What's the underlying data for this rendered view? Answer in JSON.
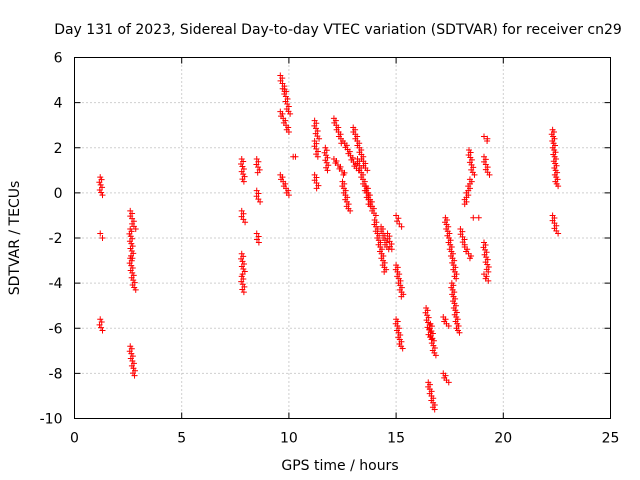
{
  "chart_data": {
    "type": "scatter",
    "title": "Day 131 of 2023, Sidereal Day-to-day VTEC variation (SDTVAR) for receiver cn29",
    "xlabel": "GPS time / hours",
    "ylabel": "SDTVAR / TECUs",
    "xlim": [
      0,
      25
    ],
    "ylim": [
      -10,
      6
    ],
    "xticks": [
      0,
      5,
      10,
      15,
      20,
      25
    ],
    "yticks": [
      -10,
      -8,
      -6,
      -4,
      -2,
      0,
      2,
      4,
      6
    ],
    "xtick_labels": [
      "0",
      "5",
      "10",
      "15",
      "20",
      "25"
    ],
    "ytick_labels": [
      "-10",
      "-8",
      "-6",
      "-4",
      "-2",
      "0",
      "2",
      "4",
      "6"
    ],
    "grid": true,
    "marker": "+",
    "color": "#ff0000",
    "series": [
      {
        "name": "cn29",
        "segments": [
          {
            "x": [
              1.2,
              1.25
            ],
            "y": [
              0.7,
              -0.1
            ]
          },
          {
            "x": [
              1.2,
              1.25
            ],
            "y": [
              -1.8,
              -2.0
            ]
          },
          {
            "x": [
              1.2,
              1.25
            ],
            "y": [
              -5.6,
              -6.1
            ]
          },
          {
            "x": [
              2.6,
              2.8
            ],
            "y": [
              -0.8,
              -1.6
            ]
          },
          {
            "x": [
              2.6,
              2.7
            ],
            "y": [
              -1.6,
              -2.9
            ]
          },
          {
            "x": [
              2.6,
              2.8
            ],
            "y": [
              -2.9,
              -4.3
            ]
          },
          {
            "x": [
              2.6,
              2.8
            ],
            "y": [
              -6.8,
              -8.1
            ]
          },
          {
            "x": [
              7.8,
              7.9
            ],
            "y": [
              1.5,
              0.5
            ]
          },
          {
            "x": [
              7.8,
              7.9
            ],
            "y": [
              -0.8,
              -1.3
            ]
          },
          {
            "x": [
              7.8,
              7.9
            ],
            "y": [
              -2.7,
              -3.6
            ]
          },
          {
            "x": [
              7.8,
              7.9
            ],
            "y": [
              -3.7,
              -4.4
            ]
          },
          {
            "x": [
              8.5,
              8.6
            ],
            "y": [
              1.5,
              0.9
            ]
          },
          {
            "x": [
              8.5,
              8.6
            ],
            "y": [
              0.1,
              -0.4
            ]
          },
          {
            "x": [
              8.5,
              8.6
            ],
            "y": [
              -1.8,
              -2.2
            ]
          },
          {
            "x": [
              9.6,
              9.8
            ],
            "y": [
              5.2,
              4.5
            ]
          },
          {
            "x": [
              9.8,
              10.0
            ],
            "y": [
              4.6,
              3.5
            ]
          },
          {
            "x": [
              9.6,
              10.0
            ],
            "y": [
              3.6,
              2.7
            ]
          },
          {
            "x": [
              9.6,
              10.0
            ],
            "y": [
              0.8,
              -0.1
            ]
          },
          {
            "x": [
              10.2,
              10.25
            ],
            "y": [
              1.6,
              1.6
            ]
          },
          {
            "x": [
              11.2,
              11.35
            ],
            "y": [
              3.2,
              2.4
            ]
          },
          {
            "x": [
              11.2,
              11.35
            ],
            "y": [
              2.3,
              1.6
            ]
          },
          {
            "x": [
              11.2,
              11.35
            ],
            "y": [
              0.8,
              0.2
            ]
          },
          {
            "x": [
              11.7,
              11.8
            ],
            "y": [
              2.0,
              1.0
            ]
          },
          {
            "x": [
              12.1,
              12.5
            ],
            "y": [
              3.3,
              2.2
            ]
          },
          {
            "x": [
              12.1,
              12.6
            ],
            "y": [
              1.5,
              0.8
            ]
          },
          {
            "x": [
              12.5,
              12.8
            ],
            "y": [
              0.5,
              -0.8
            ]
          },
          {
            "x": [
              12.6,
              13.2
            ],
            "y": [
              2.2,
              1.0
            ]
          },
          {
            "x": [
              13.0,
              13.6
            ],
            "y": [
              2.9,
              1.0
            ]
          },
          {
            "x": [
              13.2,
              13.8
            ],
            "y": [
              1.5,
              -0.6
            ]
          },
          {
            "x": [
              13.6,
              14.0
            ],
            "y": [
              0.3,
              -1.0
            ]
          },
          {
            "x": [
              14.0,
              14.5
            ],
            "y": [
              -1.2,
              -3.5
            ]
          },
          {
            "x": [
              14.3,
              14.6
            ],
            "y": [
              -1.5,
              -2.5
            ]
          },
          {
            "x": [
              14.6,
              14.8
            ],
            "y": [
              -1.8,
              -2.5
            ]
          },
          {
            "x": [
              15.0,
              15.2
            ],
            "y": [
              -1.0,
              -1.5
            ]
          },
          {
            "x": [
              15.0,
              15.3
            ],
            "y": [
              -3.2,
              -4.6
            ]
          },
          {
            "x": [
              15.0,
              15.25
            ],
            "y": [
              -5.6,
              -6.9
            ]
          },
          {
            "x": [
              16.4,
              16.6
            ],
            "y": [
              -5.1,
              -6.5
            ]
          },
          {
            "x": [
              16.6,
              16.8
            ],
            "y": [
              -5.8,
              -7.2
            ]
          },
          {
            "x": [
              16.5,
              16.8
            ],
            "y": [
              -8.4,
              -9.6
            ]
          },
          {
            "x": [
              17.2,
              17.4
            ],
            "y": [
              -5.5,
              -5.9
            ]
          },
          {
            "x": [
              17.2,
              17.4
            ],
            "y": [
              -8.0,
              -8.4
            ]
          },
          {
            "x": [
              17.3,
              17.8
            ],
            "y": [
              -1.1,
              -3.8
            ]
          },
          {
            "x": [
              17.6,
              17.9
            ],
            "y": [
              -4.0,
              -6.2
            ]
          },
          {
            "x": [
              18.0,
              18.2
            ],
            "y": [
              -1.6,
              -2.3
            ]
          },
          {
            "x": [
              18.2,
              18.5
            ],
            "y": [
              -2.4,
              -2.9
            ]
          },
          {
            "x": [
              18.2,
              18.5
            ],
            "y": [
              -0.5,
              0.6
            ]
          },
          {
            "x": [
              18.4,
              18.6
            ],
            "y": [
              1.9,
              0.8
            ]
          },
          {
            "x": [
              18.6,
              18.8
            ],
            "y": [
              -1.1,
              -1.1
            ]
          },
          {
            "x": [
              19.1,
              19.3
            ],
            "y": [
              2.5,
              2.3
            ]
          },
          {
            "x": [
              19.1,
              19.3
            ],
            "y": [
              1.6,
              0.8
            ]
          },
          {
            "x": [
              19.1,
              19.3
            ],
            "y": [
              -2.2,
              -3.5
            ]
          },
          {
            "x": [
              19.1,
              19.3
            ],
            "y": [
              -3.6,
              -3.9
            ]
          },
          {
            "x": [
              22.3,
              22.5
            ],
            "y": [
              2.8,
              0.3
            ]
          },
          {
            "x": [
              22.3,
              22.5
            ],
            "y": [
              -1.0,
              -1.8
            ]
          }
        ]
      }
    ]
  }
}
